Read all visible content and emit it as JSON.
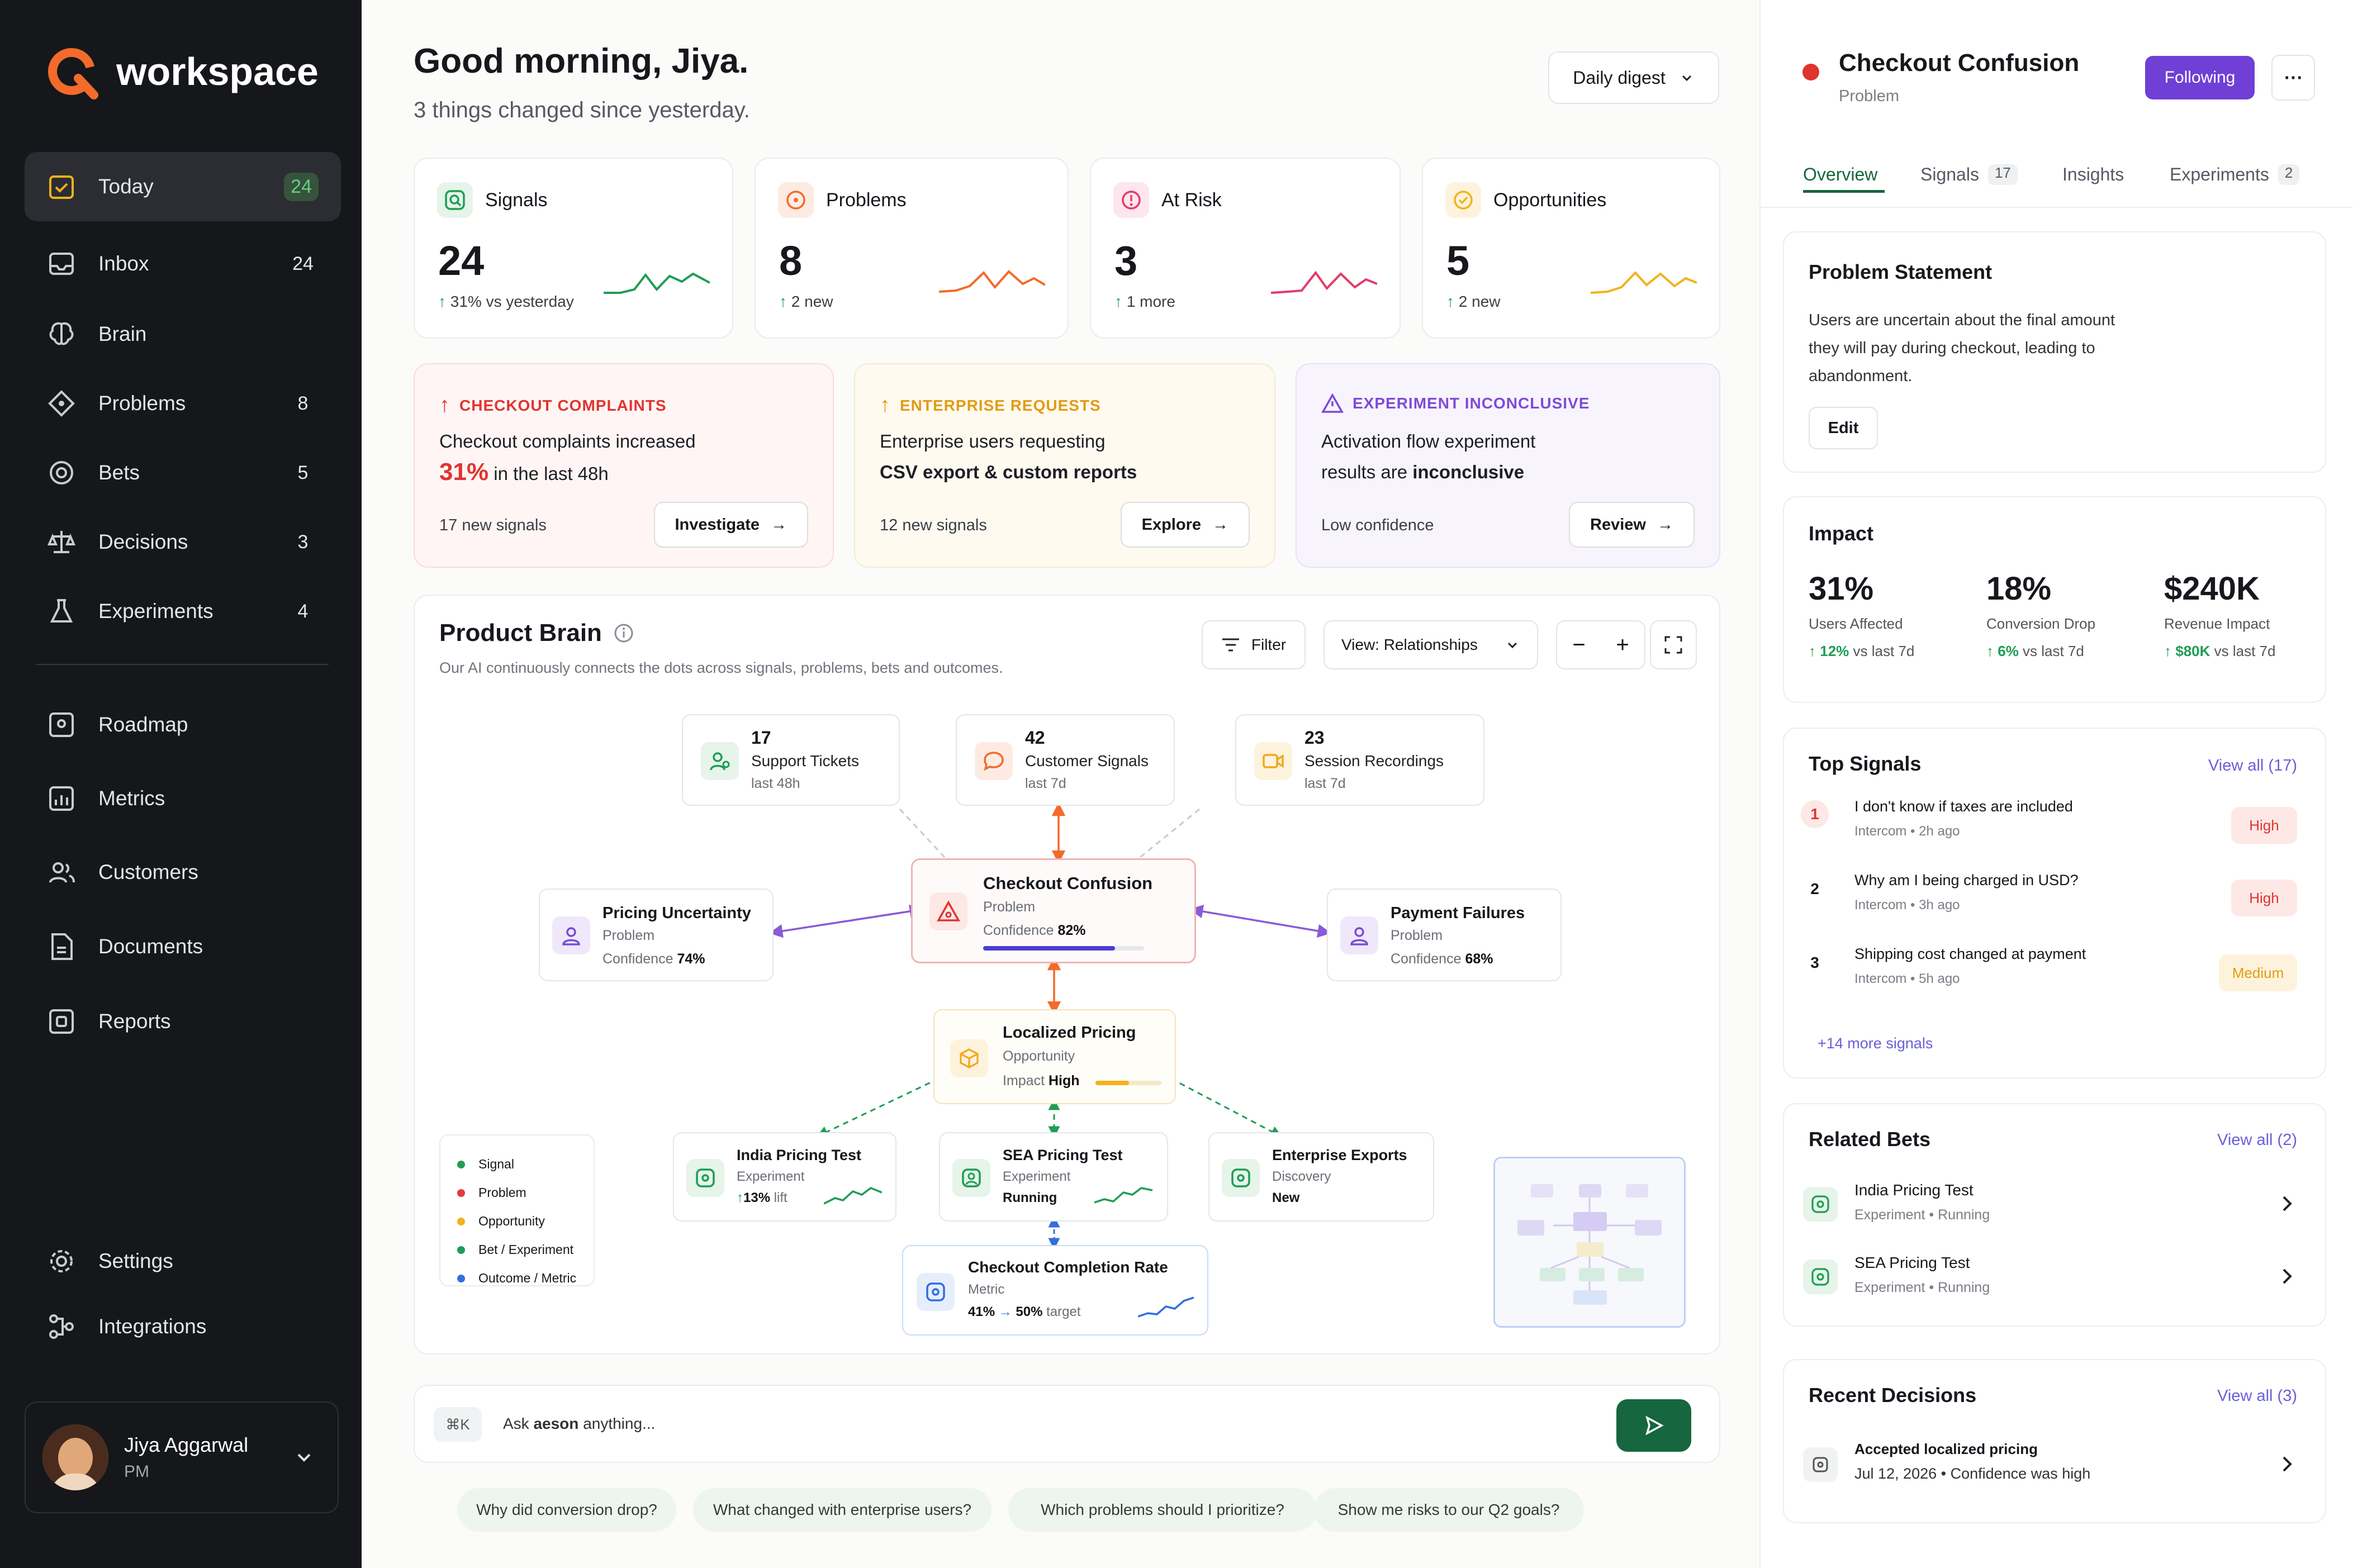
{
  "app": {
    "name": "workspace"
  },
  "sidebar": {
    "items": [
      {
        "label": "Today",
        "count": "24"
      },
      {
        "label": "Inbox",
        "count": "24"
      },
      {
        "label": "Brain",
        "count": ""
      },
      {
        "label": "Problems",
        "count": "8"
      },
      {
        "label": "Bets",
        "count": "5"
      },
      {
        "label": "Decisions",
        "count": "3"
      },
      {
        "label": "Experiments",
        "count": "4"
      },
      {
        "label": "Roadmap",
        "count": ""
      },
      {
        "label": "Metrics",
        "count": ""
      },
      {
        "label": "Customers",
        "count": ""
      },
      {
        "label": "Documents",
        "count": ""
      },
      {
        "label": "Reports",
        "count": ""
      },
      {
        "label": "Settings",
        "count": ""
      },
      {
        "label": "Integrations",
        "count": ""
      }
    ],
    "user": {
      "name": "Jiya Aggarwal",
      "role": "PM"
    }
  },
  "header": {
    "greeting": "Good morning, Jiya.",
    "subtitle": "3 things changed since yesterday.",
    "digest": "Daily digest"
  },
  "kpis": [
    {
      "label": "Signals",
      "value": "24",
      "delta": "31% vs yesterday",
      "color": "#1f9d55"
    },
    {
      "label": "Problems",
      "value": "8",
      "delta": "2 new",
      "color": "#f26b2a"
    },
    {
      "label": "At Risk",
      "value": "3",
      "delta": "1 more",
      "color": "#e23b6b"
    },
    {
      "label": "Opportunities",
      "value": "5",
      "delta": "2 new",
      "color": "#f2b21b"
    }
  ],
  "alerts": [
    {
      "tag": "CHECKOUT COMPLAINTS",
      "line1": "Checkout complaints increased",
      "highlight": "31%",
      "line2": "in the last 48h",
      "foot": "17 new signals",
      "button": "Investigate",
      "color": "#e0342f"
    },
    {
      "tag": "ENTERPRISE REQUESTS",
      "line1": "Enterprise users requesting",
      "line2": "CSV export & custom reports",
      "foot": "12 new signals",
      "button": "Explore",
      "color": "#e39b14"
    },
    {
      "tag": "EXPERIMENT INCONCLUSIVE",
      "line1": "Activation flow experiment",
      "line2a": "results are",
      "line2b": "inconclusive",
      "foot": "Low confidence",
      "button": "Review",
      "color": "#7d4bd6"
    }
  ],
  "brain": {
    "title": "Product Brain",
    "subtitle": "Our AI continuously connects the dots across signals, problems, bets and outcomes.",
    "filter": "Filter",
    "view": "View: Relationships",
    "nodes": {
      "tickets": {
        "value": "17",
        "label": "Support Tickets",
        "meta": "last 48h"
      },
      "signals": {
        "value": "42",
        "label": "Customer Signals",
        "meta": "last 7d"
      },
      "recordings": {
        "value": "23",
        "label": "Session Recordings",
        "meta": "last 7d"
      },
      "center": {
        "title": "Checkout Confusion",
        "type": "Problem",
        "conf_label": "Confidence",
        "conf": "82%",
        "conf_value": 0.82
      },
      "pricing": {
        "title": "Pricing Uncertainty",
        "type": "Problem",
        "conf_label": "Confidence",
        "conf": "74%"
      },
      "payment": {
        "title": "Payment Failures",
        "type": "Problem",
        "conf_label": "Confidence",
        "conf": "68%"
      },
      "localized": {
        "title": "Localized Pricing",
        "type": "Opportunity",
        "impact_label": "Impact",
        "impact": "High"
      },
      "india": {
        "title": "India Pricing Test",
        "type": "Experiment",
        "lift": "13%",
        "lift_label": "lift"
      },
      "sea": {
        "title": "SEA Pricing Test",
        "type": "Experiment",
        "status": "Running"
      },
      "enterprise": {
        "title": "Enterprise Exports",
        "type": "Discovery",
        "status": "New"
      },
      "metric": {
        "title": "Checkout Completion Rate",
        "type": "Metric",
        "current": "41%",
        "target": "50%",
        "target_label": "target"
      }
    },
    "legend": [
      "Signal",
      "Problem",
      "Opportunity",
      "Bet / Experiment",
      "Outcome / Metric"
    ],
    "legend_colors": [
      "#1f9d55",
      "#e23b3b",
      "#f2b21b",
      "#1f9d55",
      "#2f6fe0"
    ]
  },
  "ask": {
    "shortcut": "⌘K",
    "prefix": "Ask",
    "brand": "aeson",
    "suffix": "anything..."
  },
  "suggestions": [
    "Why did conversion drop?",
    "What changed with enterprise users?",
    "Which problems should I prioritize?",
    "Show me risks to our Q2 goals?"
  ],
  "panel": {
    "title": "Checkout Confusion",
    "type": "Problem",
    "follow": "Following",
    "tabs": [
      {
        "label": "Overview",
        "count": ""
      },
      {
        "label": "Signals",
        "count": "17"
      },
      {
        "label": "Insights",
        "count": ""
      },
      {
        "label": "Experiments",
        "count": "2"
      }
    ],
    "statement_title": "Problem Statement",
    "statement_lines": [
      "Users are uncertain about the final amount",
      "they will pay during checkout, leading to",
      "abandonment."
    ],
    "edit": "Edit",
    "impact_title": "Impact",
    "impact": [
      {
        "value": "31%",
        "label": "Users Affected",
        "delta": "12%",
        "delta_suffix": "vs last 7d"
      },
      {
        "value": "18%",
        "label": "Conversion Drop",
        "delta": "6%",
        "delta_suffix": "vs last 7d"
      },
      {
        "value": "$240K",
        "label": "Revenue Impact",
        "delta": "$80K",
        "delta_suffix": "vs last 7d"
      }
    ],
    "top_signals_title": "Top Signals",
    "top_signals_link": "View all (17)",
    "signals": [
      {
        "rank": "1",
        "text": "I don't know if taxes are included",
        "source": "Intercom",
        "time": "2h ago",
        "severity": "High"
      },
      {
        "rank": "2",
        "text": "Why am I being charged in USD?",
        "source": "Intercom",
        "time": "3h ago",
        "severity": "High"
      },
      {
        "rank": "3",
        "text": "Shipping cost changed at payment",
        "source": "Intercom",
        "time": "5h ago",
        "severity": "Medium"
      }
    ],
    "more_signals": "+14 more signals",
    "bets_title": "Related Bets",
    "bets_link": "View all (2)",
    "bets": [
      {
        "name": "India Pricing Test",
        "type": "Experiment",
        "status": "Running"
      },
      {
        "name": "SEA Pricing Test",
        "type": "Experiment",
        "status": "Running"
      }
    ],
    "decisions_title": "Recent Decisions",
    "decisions_link": "View all (3)",
    "decision": {
      "title": "Accepted localized pricing",
      "date": "Jul 12, 2026",
      "note": "Confidence was high"
    }
  }
}
